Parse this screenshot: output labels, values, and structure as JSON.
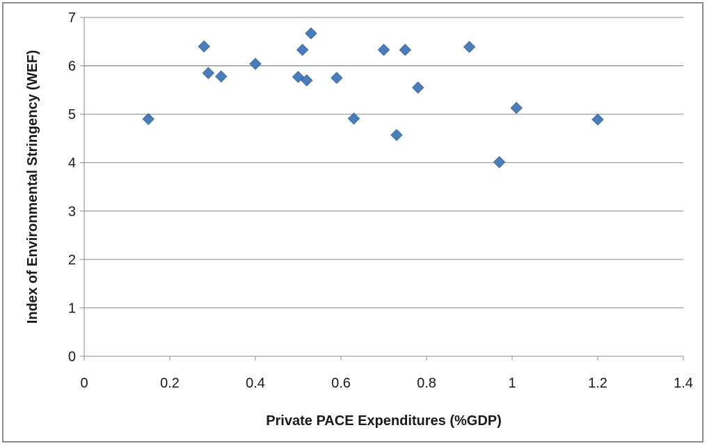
{
  "chart_data": {
    "type": "scatter",
    "title": "",
    "xlabel": "Private PACE Expenditures (%GDP)",
    "ylabel": "Index of Environmental Stringency (WEF)",
    "xlim": [
      0,
      1.4
    ],
    "ylim": [
      0,
      7
    ],
    "xticks": [
      "0",
      "0.2",
      "0.4",
      "0.6",
      "0.8",
      "1",
      "1.2",
      "1.4"
    ],
    "yticks": [
      "0",
      "1",
      "2",
      "3",
      "4",
      "5",
      "6",
      "7"
    ],
    "grid": "horizontal",
    "legend": "none",
    "marker": "diamond",
    "color": "#4a7ebb",
    "points": [
      {
        "x": 0.15,
        "y": 4.9
      },
      {
        "x": 0.28,
        "y": 6.4
      },
      {
        "x": 0.29,
        "y": 5.85
      },
      {
        "x": 0.32,
        "y": 5.78
      },
      {
        "x": 0.4,
        "y": 6.04
      },
      {
        "x": 0.5,
        "y": 5.77
      },
      {
        "x": 0.51,
        "y": 6.33
      },
      {
        "x": 0.52,
        "y": 5.7
      },
      {
        "x": 0.53,
        "y": 6.67
      },
      {
        "x": 0.59,
        "y": 5.75
      },
      {
        "x": 0.63,
        "y": 4.91
      },
      {
        "x": 0.7,
        "y": 6.33
      },
      {
        "x": 0.73,
        "y": 4.57
      },
      {
        "x": 0.75,
        "y": 6.33
      },
      {
        "x": 0.78,
        "y": 5.55
      },
      {
        "x": 0.9,
        "y": 6.39
      },
      {
        "x": 0.97,
        "y": 4.01
      },
      {
        "x": 1.01,
        "y": 5.13
      },
      {
        "x": 1.2,
        "y": 4.89
      }
    ]
  }
}
